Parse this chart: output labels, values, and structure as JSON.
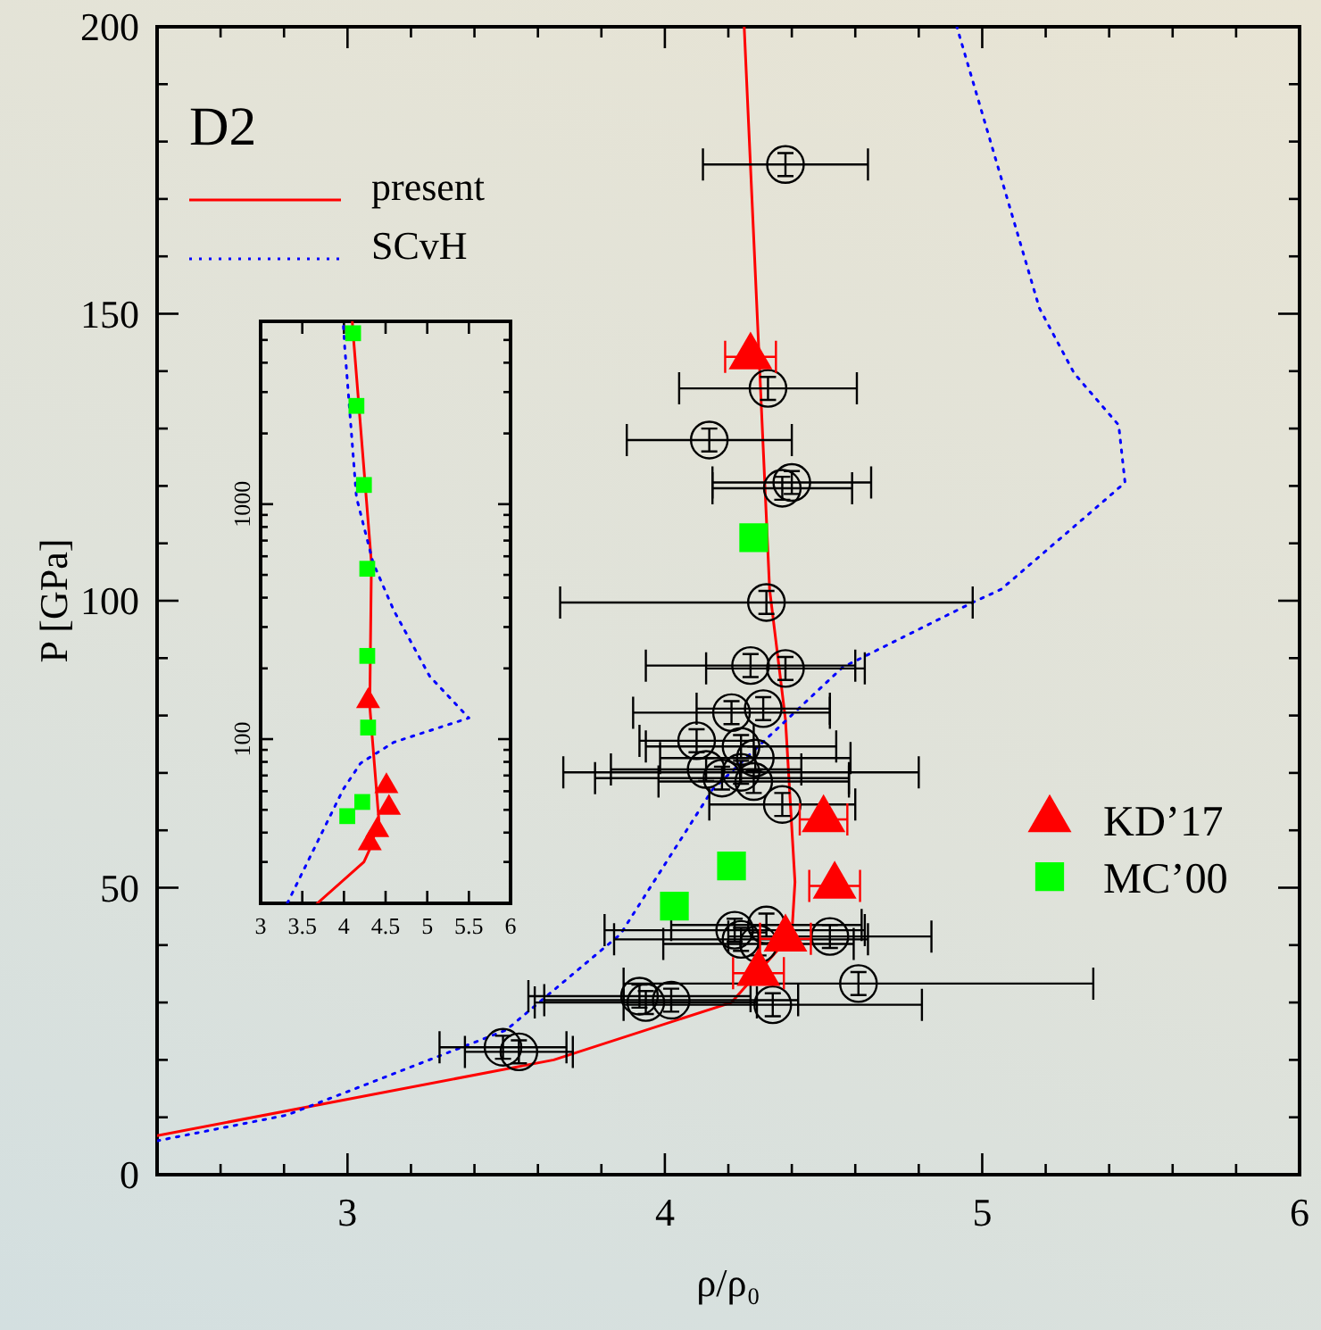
{
  "chart_data": [
    {
      "type": "scatter",
      "xlabel": "ρ/ρ₀",
      "ylabel": "P [GPa]",
      "annotations": [
        "D2"
      ],
      "legend": "right",
      "xlim": [
        2.4,
        6
      ],
      "ylim": [
        0,
        200
      ],
      "xticks": [
        {
          "value": 2.4,
          "label": null
        },
        {
          "value": 2.6,
          "label": null
        },
        {
          "value": 2.8,
          "label": null
        },
        3,
        {
          "value": 3.2,
          "label": null
        },
        {
          "value": 3.4,
          "label": null
        },
        {
          "value": 3.6,
          "label": null
        },
        {
          "value": 3.8,
          "label": null
        },
        4,
        {
          "value": 4.2,
          "label": null
        },
        {
          "value": 4.4,
          "label": null
        },
        {
          "value": 4.6,
          "label": null
        },
        {
          "value": 4.8,
          "label": null
        },
        5,
        {
          "value": 5.2,
          "label": null
        },
        {
          "value": 5.4,
          "label": null
        },
        {
          "value": 5.6,
          "label": null
        },
        {
          "value": 5.8,
          "label": null
        },
        6
      ],
      "yticks": [
        0,
        {
          "value": 10,
          "label": null
        },
        {
          "value": 20,
          "label": null
        },
        {
          "value": 30,
          "label": null
        },
        {
          "value": 40,
          "label": null
        },
        50,
        {
          "value": 60,
          "label": null
        },
        {
          "value": 70,
          "label": null
        },
        {
          "value": 80,
          "label": null
        },
        {
          "value": 90,
          "label": null
        },
        100,
        {
          "value": 110,
          "label": null
        },
        {
          "value": 120,
          "label": null
        },
        {
          "value": 130,
          "label": null
        },
        {
          "value": 140,
          "label": null
        },
        150,
        {
          "value": 160,
          "label": null
        },
        {
          "value": 170,
          "label": null
        },
        {
          "value": 180,
          "label": null
        },
        {
          "value": 190,
          "label": null
        },
        200
      ],
      "series": [
        {
          "name": "present",
          "type": "line",
          "color": "#ff0000",
          "line_style": "solid",
          "x": [
            2.4,
            3.65,
            4.21,
            4.4,
            4.41,
            4.38,
            4.33,
            4.25
          ],
          "values": [
            6.8,
            20,
            30,
            41.9,
            51,
            79.3,
            102,
            200
          ]
        },
        {
          "name": "SCvH",
          "type": "line",
          "color": "#0000ff",
          "line_style": "dotted",
          "x": [
            2.4,
            2.81,
            3.5,
            3.86,
            4.15,
            4.56,
            4.97,
            5.06,
            5.39,
            5.45,
            5.43,
            5.29,
            5.18,
            4.92
          ],
          "values": [
            5.9,
            10.4,
            25.2,
            41.9,
            67.1,
            88.4,
            99.7,
            102,
            117.7,
            120.6,
            130.6,
            139.6,
            151,
            200
          ]
        },
        {
          "type": "scatter",
          "color": "#000000",
          "marker": "circle",
          "x": [
            4.38,
            4.325,
            4.14,
            4.37,
            4.4,
            4.32,
            4.27,
            4.38,
            4.21,
            4.31,
            4.1,
            4.24,
            4.285,
            4.13,
            4.18,
            4.24,
            4.28,
            4.37,
            4.22,
            4.32,
            4.24,
            4.295,
            4.52,
            4.61,
            4.34,
            3.92,
            4.02,
            3.94,
            3.49,
            3.54
          ],
          "values": [
            176,
            137,
            128,
            119.6,
            120.6,
            99.7,
            88.7,
            88.2,
            80.5,
            81.2,
            75.6,
            74.6,
            72.6,
            70.6,
            69.1,
            70.1,
            68.5,
            64.5,
            42.6,
            43.5,
            41,
            40.2,
            41.5,
            33.3,
            29.6,
            31.1,
            30.4,
            30,
            22.2,
            21.4
          ],
          "xerrors": [
            0.26,
            0.28,
            0.26,
            0.22,
            0.25,
            0.65,
            0.33,
            0.25,
            0.31,
            0.21,
            0.18,
            0.3,
            0.3,
            0.3,
            0.4,
            0.56,
            0.3,
            0.23,
            0.41,
            0.3,
            0.4,
            0.3,
            0.32,
            0.74,
            0.47,
            0.35,
            0.4,
            0.35,
            0.2,
            0.17
          ],
          "errors": [
            2,
            2,
            2,
            2,
            2,
            2,
            2,
            2,
            2,
            2,
            2,
            2,
            2,
            2,
            2,
            2,
            2,
            2,
            2,
            2,
            2,
            2,
            2,
            2,
            2,
            2,
            2,
            2,
            2,
            2
          ]
        },
        {
          "name": "KD’17",
          "type": "scatter",
          "color": "#ff0000",
          "marker": "triangle",
          "x": [
            4.27,
            4.5,
            4.535,
            4.38,
            4.295
          ],
          "values": [
            142.5,
            61.9,
            50.3,
            41.1,
            35.1
          ],
          "xerrors": [
            0.08,
            0.075,
            0.08,
            0.08,
            0.08
          ]
        },
        {
          "name": "MC’00",
          "type": "scatter",
          "color": "#00ff00",
          "marker": "square",
          "x": [
            4.28,
            4.21,
            4.03
          ],
          "values": [
            111,
            53.8,
            46.8
          ]
        }
      ]
    },
    {
      "type": "scatter",
      "xlim": [
        3,
        6
      ],
      "ylim": [
        20,
        6000
      ],
      "log": "y",
      "xticks": [
        3,
        3.5,
        4,
        4.5,
        5,
        5.5,
        6
      ],
      "yticks": [
        {
          "value": 20,
          "label": null
        },
        {
          "value": 30,
          "label": null
        },
        {
          "value": 40,
          "label": null
        },
        {
          "value": 50,
          "label": null
        },
        {
          "value": 60,
          "label": null
        },
        {
          "value": 70,
          "label": null
        },
        {
          "value": 80,
          "label": null
        },
        {
          "value": 90,
          "label": null
        },
        100,
        {
          "value": 200,
          "label": null
        },
        {
          "value": 300,
          "label": null
        },
        {
          "value": 400,
          "label": null
        },
        {
          "value": 500,
          "label": null
        },
        {
          "value": 600,
          "label": null
        },
        {
          "value": 700,
          "label": null
        },
        {
          "value": 800,
          "label": null
        },
        {
          "value": 900,
          "label": null
        },
        1000,
        {
          "value": 2000,
          "label": null
        },
        {
          "value": 3000,
          "label": null
        },
        {
          "value": 4000,
          "label": null
        },
        {
          "value": 5000,
          "label": null
        },
        {
          "value": 6000,
          "label": null
        }
      ],
      "series": [
        {
          "type": "line",
          "color": "#ff0000",
          "line_style": "solid",
          "x": [
            3.68,
            4.24,
            4.31,
            4.42,
            4.31,
            4.33,
            4.11,
            4.1
          ],
          "values": [
            20,
            30,
            34,
            45,
            138,
            563,
            5340,
            6000
          ]
        },
        {
          "type": "line",
          "color": "#0000ff",
          "line_style": "dotted",
          "x": [
            3.32,
            3.99,
            4.2,
            4.6,
            5.5,
            5.03,
            4.6,
            4.35,
            4.15,
            4.01,
            3.99
          ],
          "values": [
            20,
            61,
            79,
            97,
            123,
            185,
            352,
            563,
            1070,
            4640,
            6000
          ]
        },
        {
          "type": "scatter",
          "color": "#00ff00",
          "marker": "square",
          "x": [
            4.11,
            4.15,
            4.24,
            4.28,
            4.28,
            4.29,
            4.22,
            4.04
          ],
          "values": [
            5340,
            2620,
            1207,
            531,
            226,
            112,
            54,
            47
          ]
        },
        {
          "type": "scatter",
          "color": "#ff0000",
          "marker": "triangle",
          "x": [
            4.29,
            4.51,
            4.54,
            4.4,
            4.31
          ],
          "values": [
            145,
            63,
            51,
            41,
            36
          ]
        }
      ]
    }
  ]
}
